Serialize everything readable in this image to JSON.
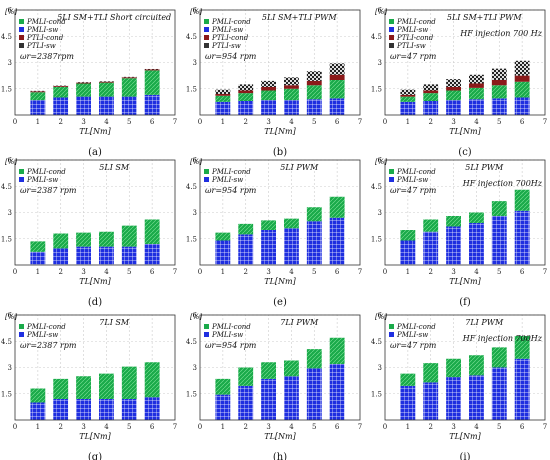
{
  "colors": {
    "mli_cond": "#1aaa4a",
    "mli_sw": "#1f2fe0",
    "tli_cond": "#8b1a1a",
    "tli_sw": "#333333",
    "hatch": "#ffffff"
  },
  "chart_data": [
    {
      "type": "bar",
      "stacked": true,
      "caption": "(a)",
      "title": "5LI SM+TLI Short circuited",
      "annotation": "",
      "speed": "ωr=2387rpm",
      "ylabel": "[%]",
      "xlabel": "TL[Nm]",
      "xlim": [
        0,
        7
      ],
      "ylim": [
        0,
        6
      ],
      "xticks": [
        "0",
        "1",
        "2",
        "3",
        "4",
        "5",
        "6",
        "7"
      ],
      "yticks": [
        "1.5",
        "3",
        "4.5",
        "6"
      ],
      "grid": true,
      "legend": [
        "PMLI-cond",
        "PMLI-sw",
        "PTLI-cond",
        "PTLI-sw"
      ],
      "categories": [
        1,
        2,
        3,
        4,
        5,
        6
      ],
      "series": [
        {
          "name": "PMLI-sw",
          "values": [
            0.85,
            1.0,
            1.05,
            1.05,
            1.05,
            1.15
          ]
        },
        {
          "name": "PMLI-cond",
          "values": [
            0.45,
            0.6,
            0.75,
            0.8,
            1.05,
            1.4
          ]
        },
        {
          "name": "PTLI-cond",
          "values": [
            0.05,
            0.05,
            0.05,
            0.05,
            0.05,
            0.05
          ]
        },
        {
          "name": "PTLI-sw",
          "values": [
            0.03,
            0.03,
            0.03,
            0.03,
            0.03,
            0.03
          ]
        }
      ]
    },
    {
      "type": "bar",
      "stacked": true,
      "caption": "(b)",
      "title": "5LI SM+TLI PWM",
      "annotation": "",
      "speed": "ωr=954 rpm",
      "ylabel": "[%]",
      "xlabel": "TL[Nm]",
      "xlim": [
        0,
        7
      ],
      "ylim": [
        0,
        6
      ],
      "xticks": [
        "0",
        "1",
        "2",
        "3",
        "4",
        "5",
        "6",
        "7"
      ],
      "yticks": [
        "1.5",
        "3",
        "4.5",
        "6"
      ],
      "grid": true,
      "legend": [
        "PMLI-cond",
        "PMLI-sw",
        "PTLI-cond",
        "PTLI-sw"
      ],
      "categories": [
        1,
        2,
        3,
        4,
        5,
        6
      ],
      "series": [
        {
          "name": "PMLI-sw",
          "values": [
            0.75,
            0.8,
            0.85,
            0.85,
            0.9,
            0.95
          ]
        },
        {
          "name": "PMLI-cond",
          "values": [
            0.35,
            0.45,
            0.55,
            0.65,
            0.8,
            1.05
          ]
        },
        {
          "name": "PTLI-cond",
          "values": [
            0.1,
            0.15,
            0.2,
            0.2,
            0.25,
            0.3
          ]
        },
        {
          "name": "PTLI-sw",
          "values": [
            0.25,
            0.35,
            0.35,
            0.45,
            0.55,
            0.65
          ]
        }
      ]
    },
    {
      "type": "bar",
      "stacked": true,
      "caption": "(c)",
      "title": "5LI SM+TLI PWM",
      "annotation": "HF injection 700 Hz",
      "speed": "ωr=47 rpm",
      "ylabel": "[%]",
      "xlabel": "TL[Nm]",
      "xlim": [
        0,
        7
      ],
      "ylim": [
        0,
        6
      ],
      "xticks": [
        "0",
        "1",
        "2",
        "3",
        "4",
        "5",
        "6",
        "7"
      ],
      "yticks": [
        "1.5",
        "3",
        "4.5",
        "6"
      ],
      "grid": true,
      "legend": [
        "PMLI-cond",
        "PMLI-sw",
        "PTLI-cond",
        "PTLI-sw"
      ],
      "categories": [
        1,
        2,
        3,
        4,
        5,
        6
      ],
      "series": [
        {
          "name": "PMLI-sw",
          "values": [
            0.75,
            0.8,
            0.85,
            0.9,
            0.95,
            1.0
          ]
        },
        {
          "name": "PMLI-cond",
          "values": [
            0.3,
            0.45,
            0.55,
            0.65,
            0.75,
            0.9
          ]
        },
        {
          "name": "PTLI-cond",
          "values": [
            0.1,
            0.15,
            0.2,
            0.25,
            0.3,
            0.35
          ]
        },
        {
          "name": "PTLI-sw",
          "values": [
            0.3,
            0.35,
            0.45,
            0.5,
            0.65,
            0.85
          ]
        }
      ]
    },
    {
      "type": "bar",
      "stacked": true,
      "caption": "(d)",
      "title": "5LI SM",
      "annotation": "",
      "speed": "ωr=2387 rpm",
      "ylabel": "[%]",
      "xlabel": "TL[Nm]",
      "xlim": [
        0,
        7
      ],
      "ylim": [
        0,
        6
      ],
      "xticks": [
        "0",
        "1",
        "2",
        "3",
        "4",
        "5",
        "6",
        "7"
      ],
      "yticks": [
        "1.5",
        "3",
        "4.5",
        "6"
      ],
      "grid": true,
      "legend": [
        "PMLI-cond",
        "PMLI-sw"
      ],
      "categories": [
        1,
        2,
        3,
        4,
        5,
        6
      ],
      "series": [
        {
          "name": "PMLI-sw",
          "values": [
            0.75,
            0.95,
            1.05,
            1.05,
            1.05,
            1.2
          ]
        },
        {
          "name": "PMLI-cond",
          "values": [
            0.6,
            0.85,
            0.8,
            0.85,
            1.2,
            1.4
          ]
        }
      ]
    },
    {
      "type": "bar",
      "stacked": true,
      "caption": "(e)",
      "title": "5LI PWM",
      "annotation": "",
      "speed": "ωr=954 rpm",
      "ylabel": "[%]",
      "xlabel": "TL[Nm]",
      "xlim": [
        0,
        7
      ],
      "ylim": [
        0,
        6
      ],
      "xticks": [
        "0",
        "1",
        "2",
        "3",
        "4",
        "5",
        "6",
        "7"
      ],
      "yticks": [
        "1.5",
        "3",
        "4.5",
        "6"
      ],
      "grid": true,
      "legend": [
        "PMLI-cond",
        "PMLI-sw"
      ],
      "categories": [
        1,
        2,
        3,
        4,
        5,
        6
      ],
      "series": [
        {
          "name": "PMLI-sw",
          "values": [
            1.4,
            1.75,
            2.0,
            2.1,
            2.5,
            2.7
          ]
        },
        {
          "name": "PMLI-cond",
          "values": [
            0.45,
            0.6,
            0.55,
            0.55,
            0.8,
            1.2
          ]
        }
      ]
    },
    {
      "type": "bar",
      "stacked": true,
      "caption": "(f)",
      "title": "5LI PWM",
      "annotation": "HF injection 700Hz",
      "speed": "ωr=47 rpm",
      "ylabel": "[%]",
      "xlabel": "TL[Nm]",
      "xlim": [
        0,
        7
      ],
      "ylim": [
        0,
        6
      ],
      "xticks": [
        "0",
        "1",
        "2",
        "3",
        "4",
        "5",
        "6",
        "7"
      ],
      "yticks": [
        "1.5",
        "3",
        "4.5",
        "6"
      ],
      "grid": true,
      "legend": [
        "PMLI-cond",
        "PMLI-sw"
      ],
      "categories": [
        1,
        2,
        3,
        4,
        5,
        6
      ],
      "series": [
        {
          "name": "PMLI-sw",
          "values": [
            1.4,
            1.9,
            2.2,
            2.4,
            2.8,
            3.1
          ]
        },
        {
          "name": "PMLI-cond",
          "values": [
            0.6,
            0.7,
            0.6,
            0.6,
            0.85,
            1.2
          ]
        }
      ]
    },
    {
      "type": "bar",
      "stacked": true,
      "caption": "(g)",
      "title": "7LI SM",
      "annotation": "",
      "speed": "ωr=2387 rpm",
      "ylabel": "[%]",
      "xlabel": "TL[Nm]",
      "xlim": [
        0,
        7
      ],
      "ylim": [
        0,
        6
      ],
      "xticks": [
        "0",
        "1",
        "2",
        "3",
        "4",
        "5",
        "6",
        "7"
      ],
      "yticks": [
        "1.5",
        "3",
        "4.5",
        "6"
      ],
      "grid": true,
      "legend": [
        "PMLI-cond",
        "PMLI-sw"
      ],
      "categories": [
        1,
        2,
        3,
        4,
        5,
        6
      ],
      "series": [
        {
          "name": "PMLI-sw",
          "values": [
            1.0,
            1.2,
            1.2,
            1.2,
            1.2,
            1.3
          ]
        },
        {
          "name": "PMLI-cond",
          "values": [
            0.8,
            1.15,
            1.3,
            1.45,
            1.85,
            2.0
          ]
        }
      ]
    },
    {
      "type": "bar",
      "stacked": true,
      "caption": "(h)",
      "title": "7LI PWM",
      "annotation": "",
      "speed": "ωr=954 rpm",
      "ylabel": "[%]",
      "xlabel": "TL[Nm]",
      "xlim": [
        0,
        7
      ],
      "ylim": [
        0,
        6
      ],
      "xticks": [
        "0",
        "1",
        "2",
        "3",
        "4",
        "5",
        "6",
        "7"
      ],
      "yticks": [
        "1.5",
        "3",
        "4.5",
        "6"
      ],
      "grid": true,
      "legend": [
        "PMLI-cond",
        "PMLI-sw"
      ],
      "categories": [
        1,
        2,
        3,
        4,
        5,
        6
      ],
      "series": [
        {
          "name": "PMLI-sw",
          "values": [
            1.45,
            1.95,
            2.35,
            2.5,
            2.95,
            3.2
          ]
        },
        {
          "name": "PMLI-cond",
          "values": [
            0.9,
            1.05,
            0.95,
            0.9,
            1.1,
            1.5
          ]
        }
      ]
    },
    {
      "type": "bar",
      "stacked": true,
      "caption": "(i)",
      "title": "7LI PWM",
      "annotation": "HF injection 700Hz",
      "speed": "ωr=47 rpm",
      "ylabel": "[%]",
      "xlabel": "TL[Nm]",
      "xlim": [
        0,
        7
      ],
      "ylim": [
        0,
        6
      ],
      "xticks": [
        "0",
        "1",
        "2",
        "3",
        "4",
        "5",
        "6",
        "7"
      ],
      "yticks": [
        "1.5",
        "3",
        "4.5",
        "6"
      ],
      "grid": true,
      "legend": [
        "PMLI-cond",
        "PMLI-sw"
      ],
      "categories": [
        1,
        2,
        3,
        4,
        5,
        6
      ],
      "series": [
        {
          "name": "PMLI-sw",
          "values": [
            1.95,
            2.15,
            2.45,
            2.55,
            3.0,
            3.5
          ]
        },
        {
          "name": "PMLI-cond",
          "values": [
            0.7,
            1.1,
            1.05,
            1.15,
            1.15,
            1.3
          ]
        }
      ]
    }
  ]
}
